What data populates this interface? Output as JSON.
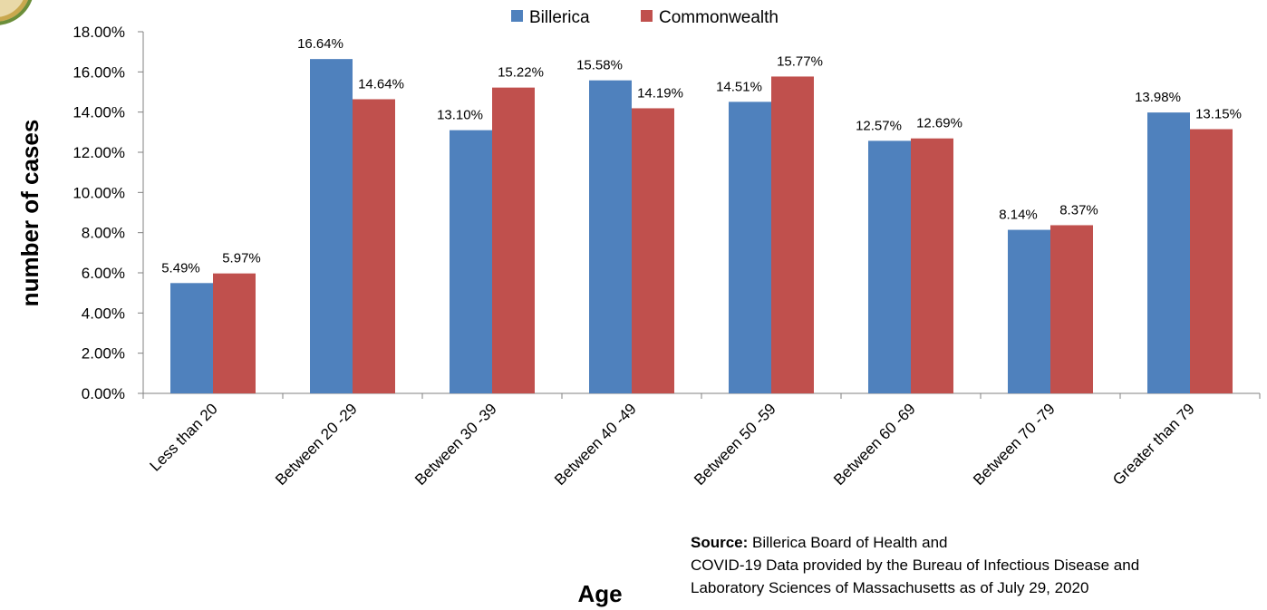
{
  "chart_data": {
    "type": "bar",
    "categories": [
      "Less than 20",
      "Between 20 -29",
      "Between 30 -39",
      "Between 40 -49",
      "Between 50 -59",
      "Between 60 -69",
      "Between 70 -79",
      "Greater than 79"
    ],
    "series": [
      {
        "name": "Billerica",
        "color": "#4f81bd",
        "values": [
          5.49,
          16.64,
          13.1,
          15.58,
          14.51,
          12.57,
          8.14,
          13.98
        ],
        "labels": [
          "5.49%",
          "16.64%",
          "13.10%",
          "15.58%",
          "14.51%",
          "12.57%",
          "8.14%",
          "13.98%"
        ]
      },
      {
        "name": "Commonwealth",
        "color": "#c0504d",
        "values": [
          5.97,
          14.64,
          15.22,
          14.19,
          15.77,
          12.69,
          8.37,
          13.15
        ],
        "labels": [
          "5.97%",
          "14.64%",
          "15.22%",
          "14.19%",
          "15.77%",
          "12.69%",
          "8.37%",
          "13.15%"
        ]
      }
    ],
    "yticks": [
      "0.00%",
      "2.00%",
      "4.00%",
      "6.00%",
      "8.00%",
      "10.00%",
      "12.00%",
      "14.00%",
      "16.00%",
      "18.00%"
    ],
    "ylim": [
      0,
      18
    ],
    "xlabel": "Age",
    "ylabel": "number of cases",
    "grid": false,
    "legend_position": "top-center"
  },
  "source": {
    "bold_label": "Source:",
    "line1": " Billerica Board of Health and",
    "line2": "COVID-19 Data provided by the Bureau of Infectious Disease and",
    "line3": "Laboratory Sciences  of Massachusetts as of July 29, 2020"
  },
  "logo": {
    "icon": "town-seal-icon"
  }
}
